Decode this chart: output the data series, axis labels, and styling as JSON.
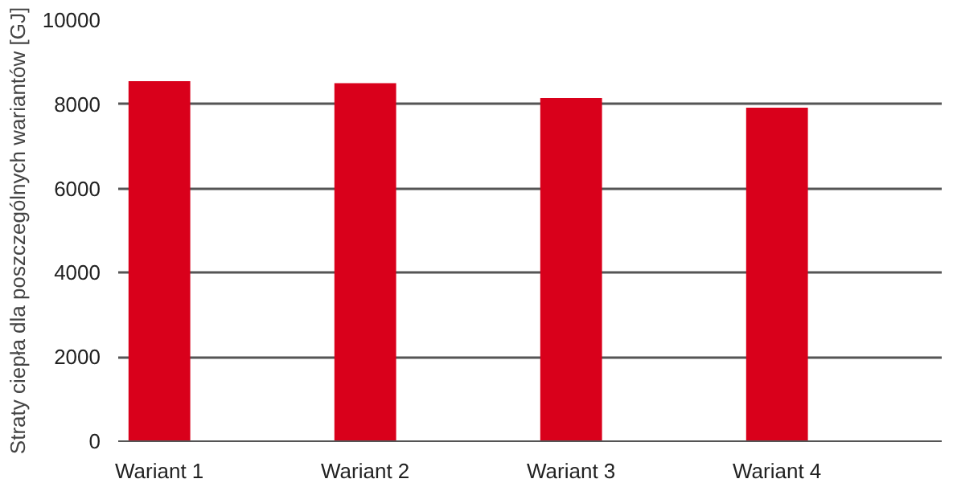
{
  "chart_data": {
    "type": "bar",
    "ylabel": "Straty ciepła dla poszczególnych wariantów [GJ]",
    "categories": [
      "Wariant 1",
      "Wariant 2",
      "Wariant 3",
      "Wariant 4"
    ],
    "values": [
      8550,
      8500,
      8150,
      7920
    ],
    "color": "#d9001b",
    "ylim": [
      0,
      10000
    ],
    "yticks": [
      0,
      2000,
      4000,
      6000,
      8000,
      10000
    ],
    "grid": "y"
  }
}
